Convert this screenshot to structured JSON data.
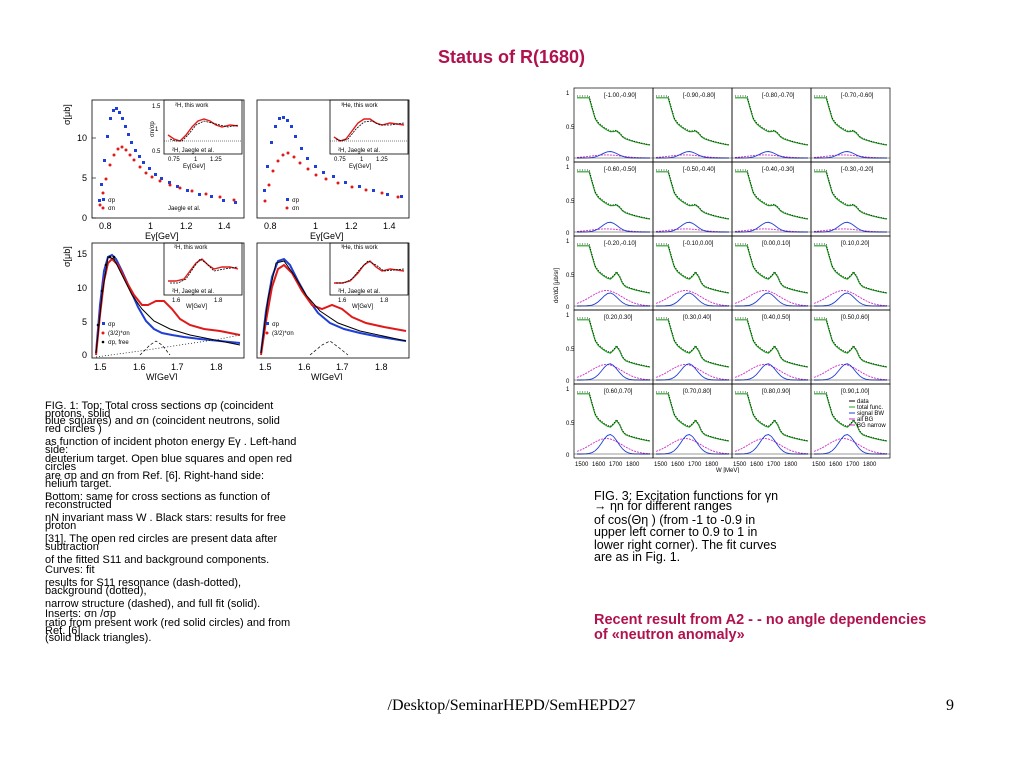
{
  "slide": {
    "title": "Status of R(1680)",
    "title_color": "#b0124e",
    "footer_path": "/Desktop/SeminarHEPD/SemHEPD27",
    "page_number": "9"
  },
  "fig1": {
    "top_left": {
      "ylabel": "σ[μb]",
      "xlabel": "Eγ[GeV]",
      "yticks": [
        "0",
        "5",
        "10"
      ],
      "xticks": [
        "0.8",
        "1",
        "1.2",
        "1.4"
      ],
      "legend": [
        "σp",
        "σn",
        "Jaegle et al."
      ],
      "inset_label_top": "²H, this work",
      "inset_label_bottom": "²H, Jaegle et al.",
      "inset_ylabel": "σn/σp",
      "inset_yticks": [
        "0.5",
        "1",
        "1.5"
      ],
      "inset_xticks": [
        "0.75",
        "1",
        "1.25"
      ],
      "inset_xlabel": "Eγ[GeV]"
    },
    "top_right": {
      "xlabel": "Eγ[GeV]",
      "xticks": [
        "0.8",
        "1",
        "1.2",
        "1.4"
      ],
      "legend": [
        "σp",
        "σn"
      ],
      "inset_label_top": "³He, this work",
      "inset_label_bottom": "²H, Jaegle et al.",
      "inset_xticks": [
        "0.75",
        "1",
        "1.25"
      ],
      "inset_xlabel": "Eγ[GeV]"
    },
    "bottom_left": {
      "ylabel": "σ[μb]",
      "xlabel": "W[GeV]",
      "yticks": [
        "0",
        "5",
        "10",
        "15"
      ],
      "xticks": [
        "1.5",
        "1.6",
        "1.7",
        "1.8"
      ],
      "legend": [
        "σp",
        "(3/2)*σn",
        "σp, free"
      ],
      "inset_label_top": "²H, this work",
      "inset_label_bottom": "²H, Jaegle et al.",
      "inset_xticks": [
        "1.6",
        "1.8"
      ],
      "inset_xlabel": "W[GeV]"
    },
    "bottom_right": {
      "xlabel": "W[GeV]",
      "xticks": [
        "1.5",
        "1.6",
        "1.7",
        "1.8"
      ],
      "legend": [
        "σp",
        "(3/2)*σn"
      ],
      "inset_label_top": "³He, this work",
      "inset_label_bottom": "²H, Jaegle et al.",
      "inset_xticks": [
        "1.6",
        "1.8"
      ],
      "inset_xlabel": "W[GeV]"
    },
    "caption_lines": [
      "FIG. 1: Top: Total cross sections σp (coincident",
      " protons, solid",
      "blue squares) and σn (coincident neutrons, solid",
      "red circles )",
      "as function of incident photon energy Eγ . Left-hand",
      "side:",
      "deuterium target. Open blue squares and open red",
      "circles",
      "are σp and σn from Ref. [6]. Right-hand side:",
      "helium target.",
      "Bottom: same for cross sections as function of",
      "reconstructed",
      "ηN invariant mass W . Black stars: results for free",
      "proton",
      "[31]. The open red circles are present data after",
      "subtraction",
      "of the fitted S11 and background components.",
      "Curves: fit",
      "results for S11 resonance (dash-dotted),",
      "background (dotted),",
      "narrow structure (dashed), and full fit (solid).",
      "Inserts: σn /σp",
      "ratio from present work (red solid circles) and from",
      "Ref. [6]",
      "(solid black triangles)."
    ]
  },
  "fig3": {
    "ylabel": "dσ/dΩ [μb/sr]",
    "xlabel": "W [MeV]",
    "xticks": [
      "1500",
      "1600",
      "1700",
      "1800"
    ],
    "panels": [
      "[-1.00,-0.90]",
      "[-0.90,-0.80]",
      "[-0.80,-0.70]",
      "[-0.70,-0.60]",
      "[-0.60,-0.50]",
      "[-0.50,-0.40]",
      "[-0.40,-0.30]",
      "[-0.30,-0.20]",
      "[-0.20,-0.10]",
      "[-0.10,0.00]",
      "[0.00,0.10]",
      "[0.10,0.20]",
      "[0.20,0.30]",
      "[0.30,0.40]",
      "[0.40,0.50]",
      "[0.50,0.60]",
      "[0.60,0.70]",
      "[0.70,0.80]",
      "[0.80,0.90]",
      "[0.90,1.00]"
    ],
    "legend": [
      "data",
      "total func.",
      "signal BW",
      "all BG",
      "BG narrow"
    ],
    "caption_lines": [
      "FIG. 3: Excitation functions for γn",
      "→ ηn for different ranges",
      "of cos(Θη ) (from -1 to -0.9 in",
      "upper left corner to 0.9 to 1 in",
      "lower right corner). The fit curves",
      "are as in Fig. 1."
    ]
  },
  "recent_note": {
    "line1": "Recent result from A2 - - no angle dependencies",
    "line2": "of «neutron anomaly»",
    "color": "#b0124e"
  }
}
